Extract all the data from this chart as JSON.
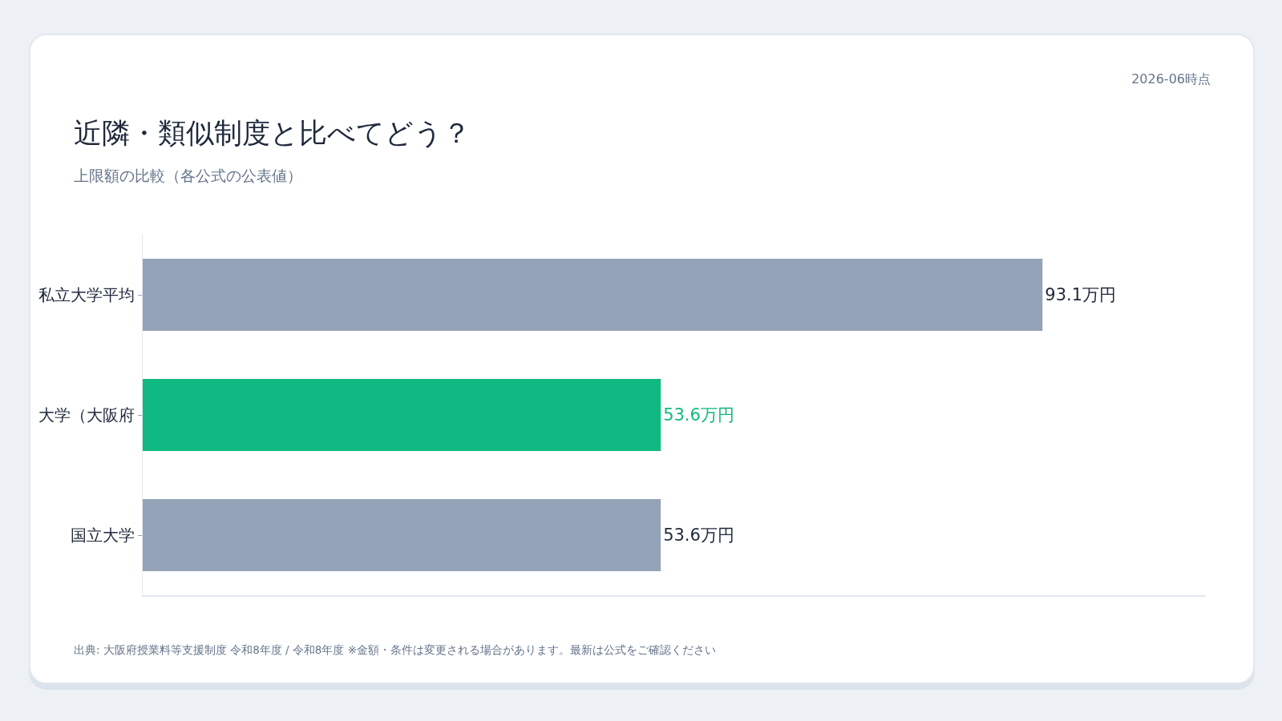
{
  "chart_data": {
    "type": "bar",
    "orientation": "horizontal",
    "title": "近隣・類似制度と比べてどう？",
    "subtitle": "上限額の比較（各公式の公表値）",
    "categories": [
      "私立大学平均",
      "大学（大阪府",
      "国立大学"
    ],
    "values": [
      93.1,
      53.6,
      53.6
    ],
    "colors": [
      "#94a3b8",
      "#10b981",
      "#94a3b8"
    ],
    "value_labels": [
      "93.1万円",
      "53.6万円",
      "53.6万円"
    ],
    "xlim": [
      0,
      110
    ],
    "tick_labels": "y",
    "annotations": [
      "2026-06時点",
      "出典: 大阪府授業料等支援制度 令和8年度 / 令和8年度 ※金額・条件は変更される場合があります。最新は公式をご確認ください"
    ]
  }
}
